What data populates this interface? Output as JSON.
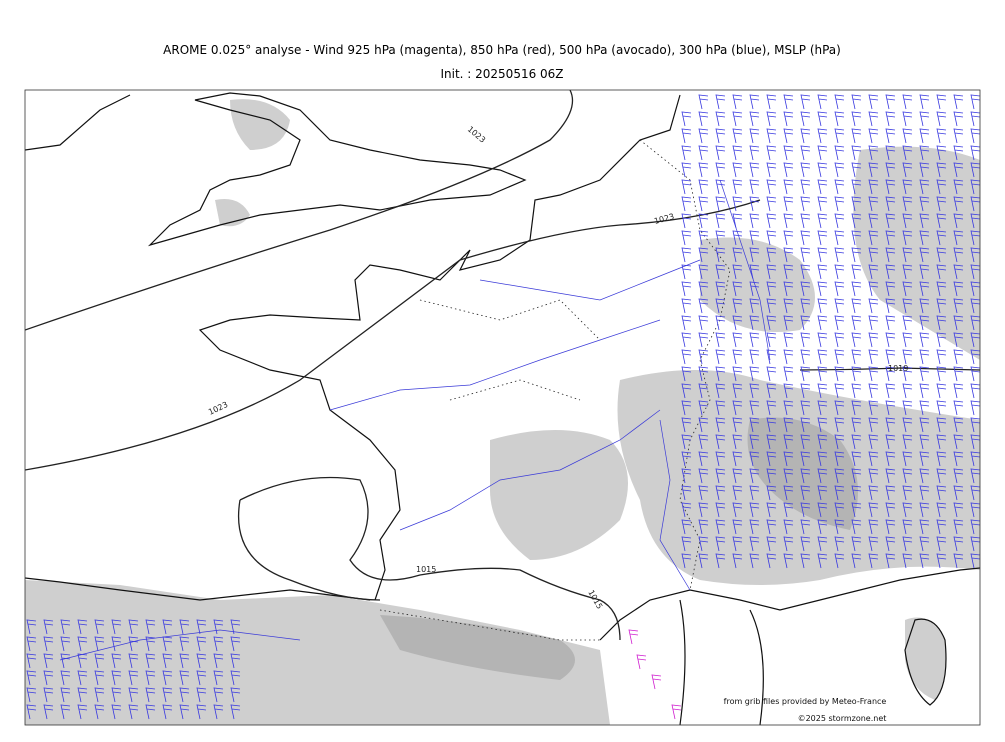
{
  "header": {
    "title": "AROME 0.025° analyse - Wind 925 hPa (magenta), 850 hPa (red), 500 hPa (avocado), 300 hPa (blue), MSLP (hPa)",
    "subtitle": "Init. : 20250516 06Z"
  },
  "isobar_labels": [
    "1023",
    "1023",
    "1023",
    "1019",
    "1015",
    "1015"
  ],
  "credits": [
    "from grib files provided by Meteo-France",
    "©2025 stormzone.net"
  ]
}
